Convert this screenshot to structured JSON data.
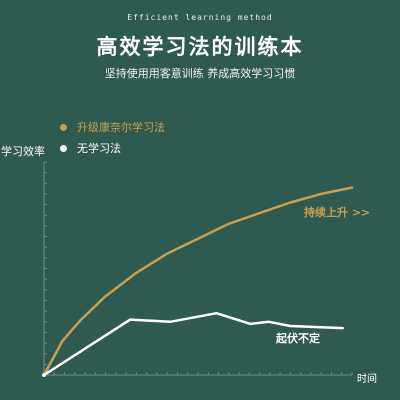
{
  "header": {
    "eyebrow": "Efficient learning method",
    "title": "高效学习法的训练本",
    "subtitle": "坚持使用用客意训练 养成高效学习习惯"
  },
  "colors": {
    "background": "#2f5a50",
    "gold": "#c9a04f",
    "white": "#ffffff",
    "axis": "#6f8f86"
  },
  "chart_data": {
    "type": "line",
    "title": "",
    "xlabel": "时间",
    "ylabel": "学习效率",
    "xlim": [
      0,
      10
    ],
    "ylim": [
      0,
      10
    ],
    "grid": false,
    "legend_position": "top-left",
    "series": [
      {
        "name": "升级康奈尔学习法",
        "color": "#c9a04f",
        "x": [
          0,
          0.6,
          1.2,
          2,
          3,
          4,
          5,
          6,
          7,
          8,
          9,
          10
        ],
        "y": [
          0,
          1.6,
          2.6,
          3.7,
          4.8,
          5.7,
          6.4,
          7.1,
          7.6,
          8.1,
          8.5,
          8.8
        ],
        "annotation": "持续上升 >>"
      },
      {
        "name": "无学习法",
        "color": "#ffffff",
        "x": [
          0,
          2.8,
          4.1,
          5.6,
          6.7,
          7.3,
          8,
          9.7
        ],
        "y": [
          0,
          2.6,
          2.5,
          2.9,
          2.4,
          2.5,
          2.3,
          2.2
        ],
        "annotation": "起伏不定"
      }
    ]
  }
}
